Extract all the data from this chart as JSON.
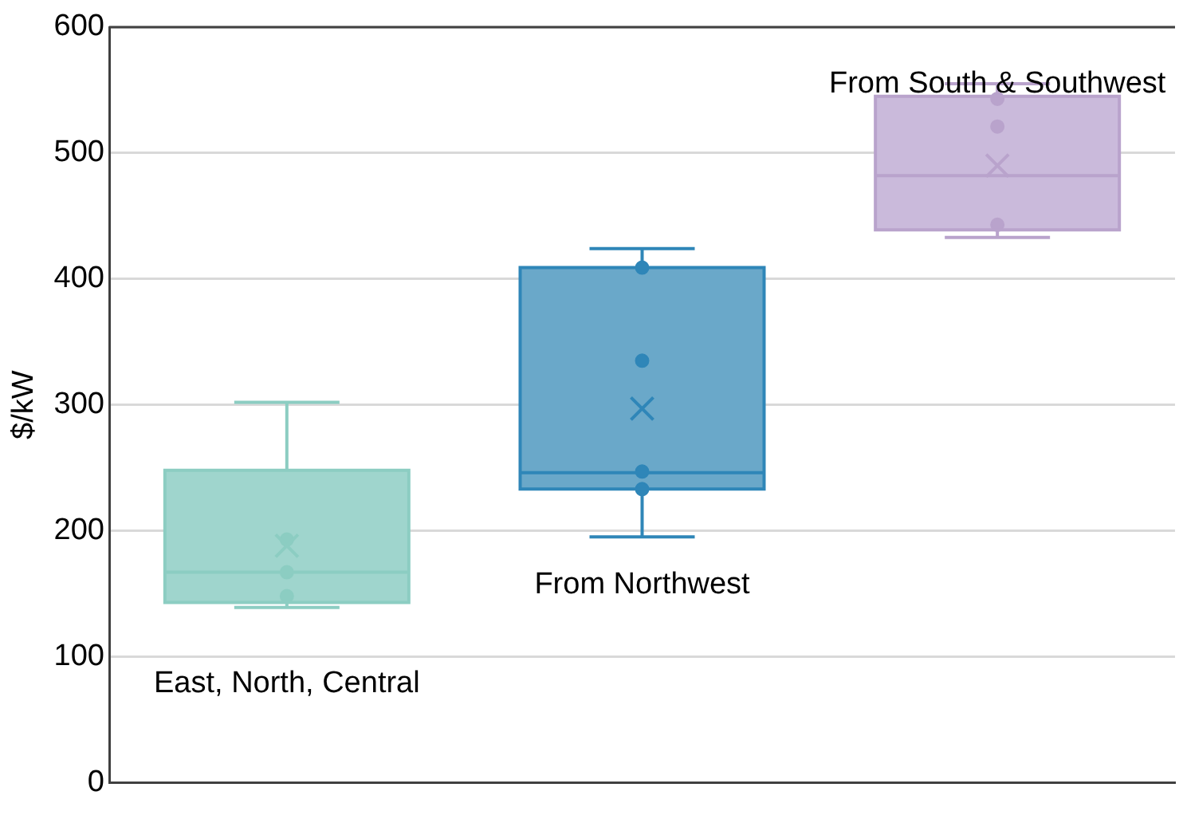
{
  "chart_data": {
    "type": "box",
    "ylabel": "$/kW",
    "categories": [
      null,
      null,
      null
    ],
    "ylim": [
      0,
      600
    ],
    "yticks": [
      0,
      100,
      200,
      300,
      400,
      500,
      600
    ],
    "grid": "y",
    "legend": false,
    "boxes": [
      {
        "low": 139,
        "q1": 143,
        "median": 167,
        "q3": 248,
        "high": 302,
        "mean": 188
      },
      {
        "low": 195,
        "q1": 233,
        "median": 246,
        "q3": 409,
        "high": 424,
        "mean": 297
      },
      {
        "low": 433,
        "q1": 439,
        "median": 482,
        "q3": 545,
        "high": 555,
        "mean": 490
      }
    ],
    "colors": [
      "#9fd5cd",
      "#6aa8c9",
      "#cabadb"
    ],
    "series": [
      {
        "type": "scatter",
        "colors": [
          "#8ccdc2",
          "#2f86b8",
          "#b9a3cc"
        ],
        "values": [
          193,
          409,
          543
        ]
      },
      {
        "type": "scatter",
        "colors": [
          "#8ccdc2",
          "#2f86b8",
          "#b9a3cc"
        ],
        "values": [
          167,
          335,
          521
        ]
      },
      {
        "type": "scatter",
        "colors": [
          "#8ccdc2",
          "#2f86b8",
          "#b9a3cc"
        ],
        "values": [
          148,
          247,
          443
        ]
      },
      {
        "type": "scatter",
        "colors": [
          "#8ccdc2",
          "#2f86b8",
          "#b9a3cc"
        ],
        "values": [
          null,
          233,
          null
        ]
      }
    ],
    "marker": "circle",
    "annotations": [
      "East, North, Central",
      "From Northwest",
      "From South & Southwest"
    ]
  }
}
